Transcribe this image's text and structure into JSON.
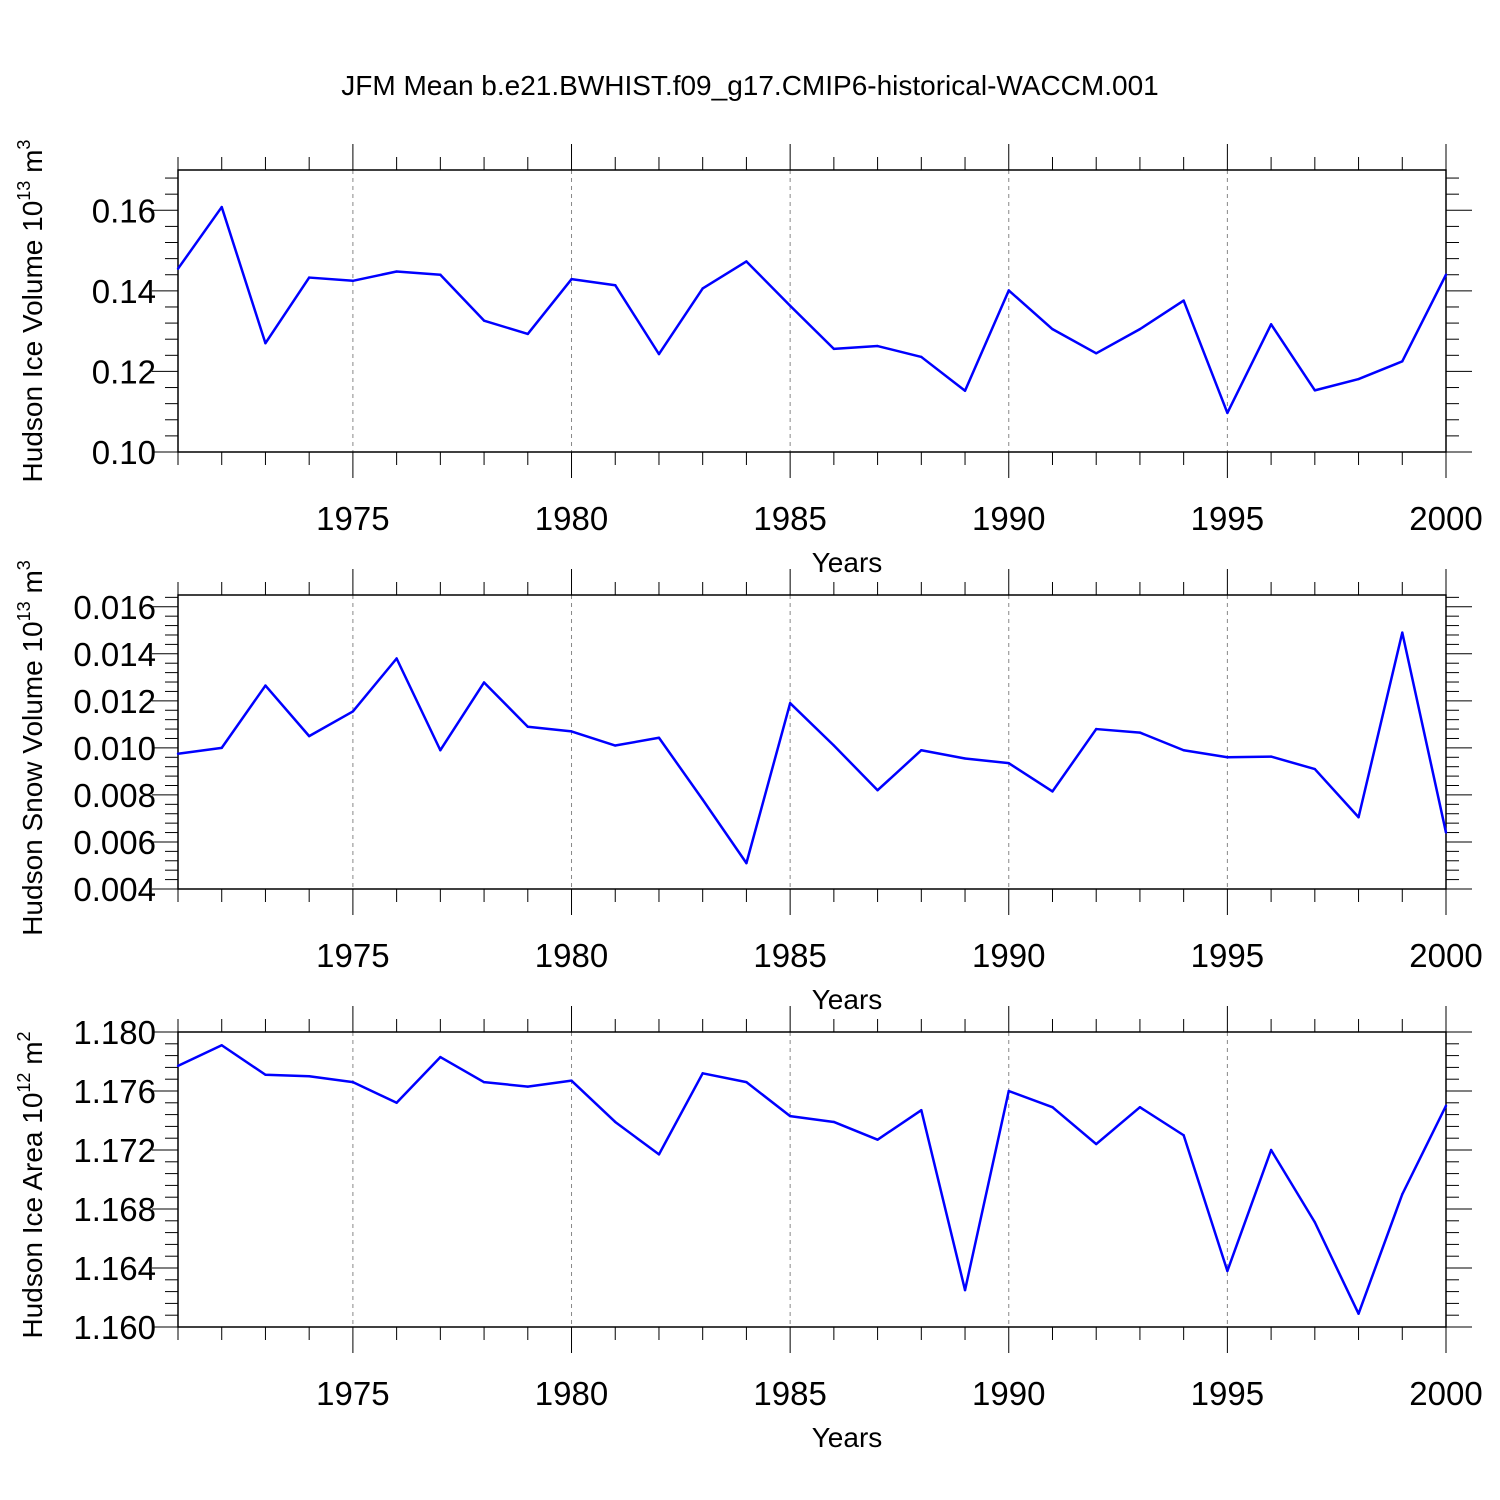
{
  "figure": {
    "title": "JFM Mean b.e21.BWHIST.f09_g17.CMIP6-historical-WACCM.001"
  },
  "style": {
    "line_color": "#0000ff",
    "axis_color": "#000000",
    "grid_color": "#888888"
  },
  "chart_data": [
    {
      "type": "line",
      "xlabel": "Years",
      "ylabel_text": "Hudson Ice Volume 10",
      "ylabel_exp": "13",
      "ylabel_unit": " m",
      "ylabel_unit_exp": "3",
      "xlim": [
        1971,
        2000
      ],
      "ylim": [
        0.1,
        0.17
      ],
      "yticks": [
        0.1,
        0.12,
        0.14,
        0.16
      ],
      "ytick_labels": [
        "0.10",
        "0.12",
        "0.14",
        "0.16"
      ],
      "xticks": [
        1975,
        1980,
        1985,
        1990,
        1995,
        2000
      ],
      "xtick_labels": [
        "1975",
        "1980",
        "1985",
        "1990",
        "1995",
        "2000"
      ],
      "grid": "vertical dashed at major x ticks",
      "x": [
        1971,
        1972,
        1973,
        1974,
        1975,
        1976,
        1977,
        1978,
        1979,
        1980,
        1981,
        1982,
        1983,
        1984,
        1985,
        1986,
        1987,
        1988,
        1989,
        1990,
        1991,
        1992,
        1993,
        1994,
        1995,
        1996,
        1997,
        1998,
        1999,
        2000
      ],
      "series": [
        {
          "values": [
            0.1455,
            0.1608,
            0.127,
            0.1433,
            0.1425,
            0.1448,
            0.144,
            0.1326,
            0.1293,
            0.1429,
            0.1414,
            0.1243,
            0.1406,
            0.1473,
            0.1363,
            0.1256,
            0.1263,
            0.1236,
            0.1152,
            0.1401,
            0.1305,
            0.1245,
            0.1305,
            0.1376,
            0.1097,
            0.1317,
            0.1153,
            0.1181,
            0.1225,
            0.144
          ]
        }
      ]
    },
    {
      "type": "line",
      "xlabel": "Years",
      "ylabel_text": "Hudson Snow Volume 10",
      "ylabel_exp": "13",
      "ylabel_unit": " m",
      "ylabel_unit_exp": "3",
      "xlim": [
        1971,
        2000
      ],
      "ylim": [
        0.004,
        0.0165
      ],
      "yticks": [
        0.004,
        0.006,
        0.008,
        0.01,
        0.012,
        0.014,
        0.016
      ],
      "ytick_labels": [
        "0.004",
        "0.006",
        "0.008",
        "0.010",
        "0.012",
        "0.014",
        "0.016"
      ],
      "xticks": [
        1975,
        1980,
        1985,
        1990,
        1995,
        2000
      ],
      "xtick_labels": [
        "1975",
        "1980",
        "1985",
        "1990",
        "1995",
        "2000"
      ],
      "grid": "vertical dashed at major x ticks",
      "x": [
        1971,
        1972,
        1973,
        1974,
        1975,
        1976,
        1977,
        1978,
        1979,
        1980,
        1981,
        1982,
        1983,
        1984,
        1985,
        1986,
        1987,
        1988,
        1989,
        1990,
        1991,
        1992,
        1993,
        1994,
        1995,
        1996,
        1997,
        1998,
        1999,
        2000
      ],
      "series": [
        {
          "values": [
            0.00975,
            0.01,
            0.01265,
            0.0105,
            0.01155,
            0.0138,
            0.0099,
            0.01278,
            0.0109,
            0.0107,
            0.0101,
            0.01043,
            0.0078,
            0.0051,
            0.0119,
            0.0101,
            0.0082,
            0.0099,
            0.00955,
            0.00935,
            0.00815,
            0.0108,
            0.01065,
            0.0099,
            0.0096,
            0.00963,
            0.0091,
            0.00705,
            0.0149,
            0.0064
          ]
        }
      ]
    },
    {
      "type": "line",
      "xlabel": "Years",
      "ylabel_text": "Hudson Ice Area 10",
      "ylabel_exp": "12",
      "ylabel_unit": " m",
      "ylabel_unit_exp": "2",
      "xlim": [
        1971,
        2000
      ],
      "ylim": [
        1.16,
        1.18
      ],
      "yticks": [
        1.16,
        1.164,
        1.168,
        1.172,
        1.176,
        1.18
      ],
      "ytick_labels": [
        "1.160",
        "1.164",
        "1.168",
        "1.172",
        "1.176",
        "1.180"
      ],
      "xticks": [
        1975,
        1980,
        1985,
        1990,
        1995,
        2000
      ],
      "xtick_labels": [
        "1975",
        "1980",
        "1985",
        "1990",
        "1995",
        "2000"
      ],
      "grid": "vertical dashed at major x ticks",
      "x": [
        1971,
        1972,
        1973,
        1974,
        1975,
        1976,
        1977,
        1978,
        1979,
        1980,
        1981,
        1982,
        1983,
        1984,
        1985,
        1986,
        1987,
        1988,
        1989,
        1990,
        1991,
        1992,
        1993,
        1994,
        1995,
        1996,
        1997,
        1998,
        1999,
        2000
      ],
      "series": [
        {
          "values": [
            1.1777,
            1.1791,
            1.1771,
            1.177,
            1.1766,
            1.1752,
            1.1783,
            1.1766,
            1.1763,
            1.1767,
            1.1739,
            1.1717,
            1.1772,
            1.1766,
            1.1743,
            1.1739,
            1.1727,
            1.1747,
            1.1625,
            1.176,
            1.1749,
            1.1724,
            1.1749,
            1.173,
            1.1638,
            1.172,
            1.1671,
            1.1609,
            1.169,
            1.175
          ]
        }
      ]
    }
  ]
}
